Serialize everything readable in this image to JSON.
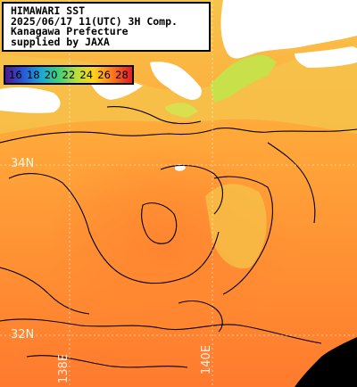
{
  "info": {
    "line1": "HIMAWARI SST",
    "line2": "2025/06/17 11(UTC) 3H Comp.",
    "line3": "Kanagawa Prefecture",
    "line4": "supplied by JAXA"
  },
  "legend": {
    "ticks": [
      "16",
      "18",
      "20",
      "22",
      "24",
      "26",
      "28"
    ],
    "colors": [
      "#4a1a8c",
      "#2a58d6",
      "#19a7d7",
      "#3fd07c",
      "#b7e03a",
      "#ffd21c",
      "#ff7a1a",
      "#e51a2a"
    ]
  },
  "grid": {
    "lat_34": "34N",
    "lat_32": "32N",
    "lon_138": "138E",
    "lon_140": "140E"
  },
  "colors": {
    "land": "#ffffff",
    "sea_warm": "#ff8c30",
    "sea_cool": "#f7c040",
    "sea_coastal": "#e8e060",
    "no_data": "#000000"
  }
}
